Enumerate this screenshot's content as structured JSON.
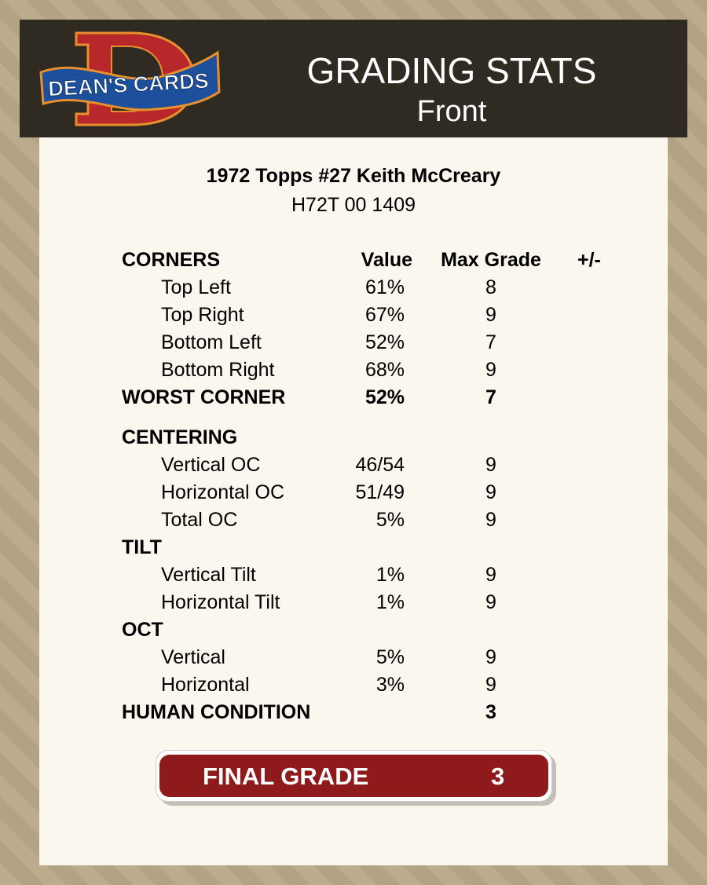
{
  "header": {
    "logo_text": "DEAN'S CARDS",
    "title": "GRADING STATS",
    "subtitle": "Front"
  },
  "card": {
    "name": "1972 Topps #27 Keith McCreary",
    "cert": "H72T 00 1409"
  },
  "columns": {
    "value": "Value",
    "max_grade": "Max Grade",
    "plus_minus": "+/-"
  },
  "rows": [
    {
      "label": "CORNERS",
      "type": "header"
    },
    {
      "label": "Top Left",
      "value": "61%",
      "max": "8",
      "type": "sub"
    },
    {
      "label": "Top Right",
      "value": "67%",
      "max": "9",
      "type": "sub"
    },
    {
      "label": "Bottom Left",
      "value": "52%",
      "max": "7",
      "type": "sub"
    },
    {
      "label": "Bottom Right",
      "value": "68%",
      "max": "9",
      "type": "sub"
    },
    {
      "label": "WORST CORNER",
      "value": "52%",
      "max": "7",
      "type": "bold"
    },
    {
      "label": "CENTERING",
      "type": "section",
      "gap": true
    },
    {
      "label": "Vertical OC",
      "value": "46/54",
      "max": "9",
      "type": "sub"
    },
    {
      "label": "Horizontal OC",
      "value": "51/49",
      "max": "9",
      "type": "sub"
    },
    {
      "label": "Total OC",
      "value": "5%",
      "max": "9",
      "type": "sub"
    },
    {
      "label": "TILT",
      "type": "section"
    },
    {
      "label": "Vertical Tilt",
      "value": "1%",
      "max": "9",
      "type": "sub"
    },
    {
      "label": "Horizontal Tilt",
      "value": "1%",
      "max": "9",
      "type": "sub"
    },
    {
      "label": "OCT",
      "type": "section"
    },
    {
      "label": "Vertical",
      "value": "5%",
      "max": "9",
      "type": "sub"
    },
    {
      "label": "Horizontal",
      "value": "3%",
      "max": "9",
      "type": "sub"
    },
    {
      "label": "HUMAN CONDITION",
      "max": "3",
      "type": "bold"
    }
  ],
  "final": {
    "label": "FINAL GRADE",
    "value": "3"
  },
  "colors": {
    "header_bg": "#2f2a22",
    "panel_bg": "#fbf7ee",
    "final_bg": "#8f1a1c"
  }
}
